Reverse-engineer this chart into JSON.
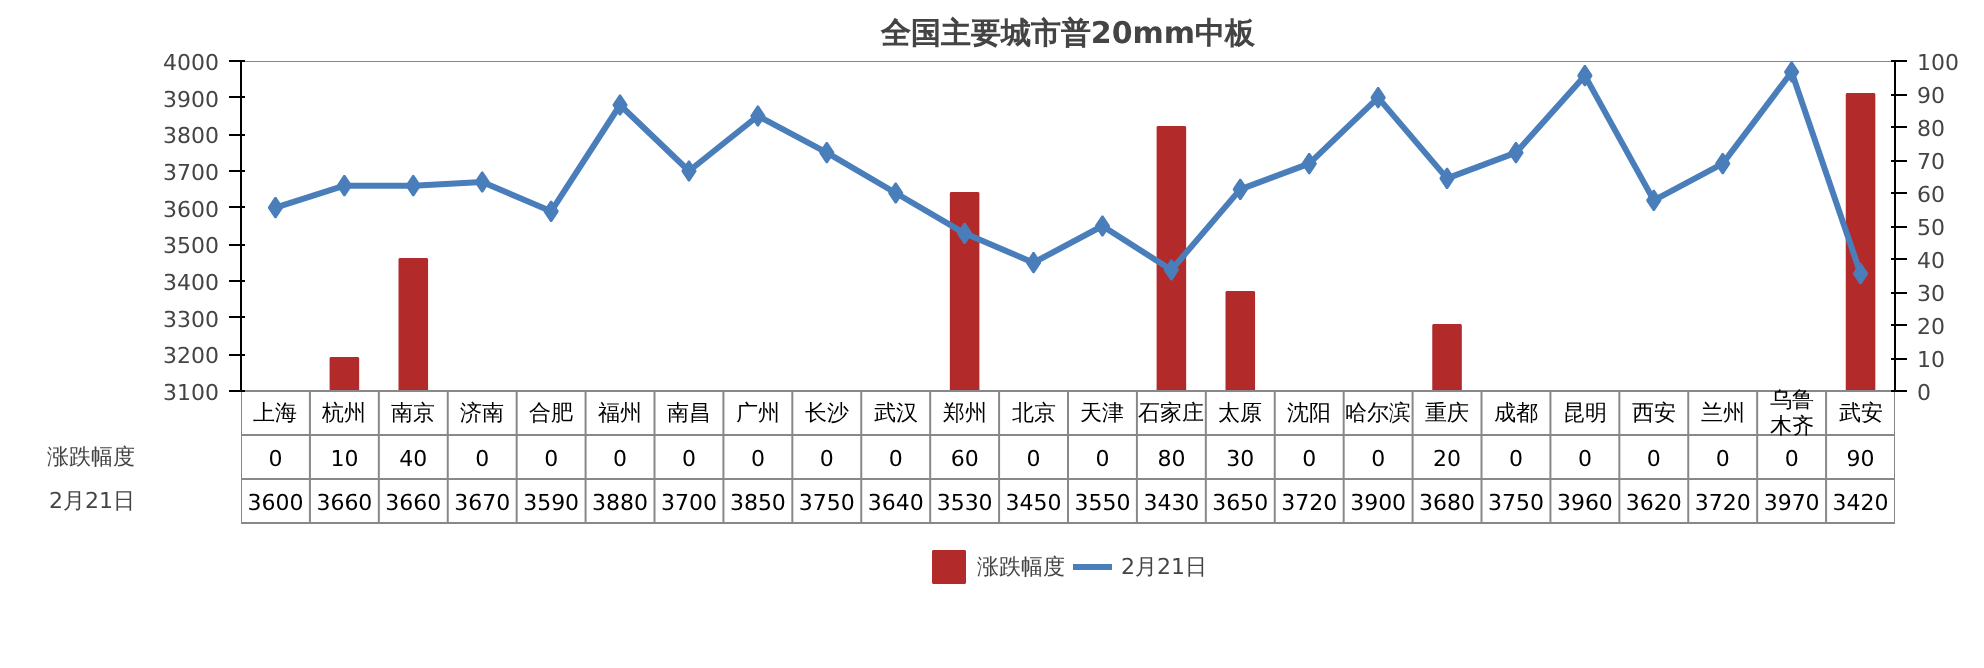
{
  "chart_data": {
    "type": "bar",
    "title": "全国主要城市普20mm中板",
    "categories": [
      "上海",
      "杭州",
      "南京",
      "济南",
      "合肥",
      "福州",
      "南昌",
      "广州",
      "长沙",
      "武汉",
      "郑州",
      "北京",
      "天津",
      "石家庄",
      "太原",
      "沈阳",
      "哈尔滨",
      "重庆",
      "成都",
      "昆明",
      "西安",
      "兰州",
      "乌鲁木齐",
      "武安"
    ],
    "series": [
      {
        "name": "涨跌幅度",
        "axis": "y2",
        "color": "#b22a2a",
        "values": [
          0,
          10,
          40,
          0,
          0,
          0,
          0,
          0,
          0,
          0,
          60,
          0,
          0,
          80,
          30,
          0,
          0,
          20,
          0,
          0,
          0,
          0,
          0,
          90
        ]
      },
      {
        "name": "2月21日",
        "type": "line",
        "color": "#4a7ebb",
        "marker": "diamond",
        "values": [
          3600,
          3660,
          3660,
          3670,
          3590,
          3880,
          3700,
          3850,
          3750,
          3640,
          3530,
          3450,
          3550,
          3430,
          3650,
          3720,
          3900,
          3680,
          3750,
          3960,
          3620,
          3720,
          3970,
          3420
        ]
      }
    ],
    "ylim": [
      3100,
      4000
    ],
    "yticks": [
      3100,
      3200,
      3300,
      3400,
      3500,
      3600,
      3700,
      3800,
      3900,
      4000
    ],
    "y2lim": [
      0,
      100
    ],
    "y2ticks": [
      0,
      10,
      20,
      30,
      40,
      50,
      60,
      70,
      80,
      90,
      100
    ],
    "grid": false,
    "legend": "bottom",
    "data_labels": true
  }
}
